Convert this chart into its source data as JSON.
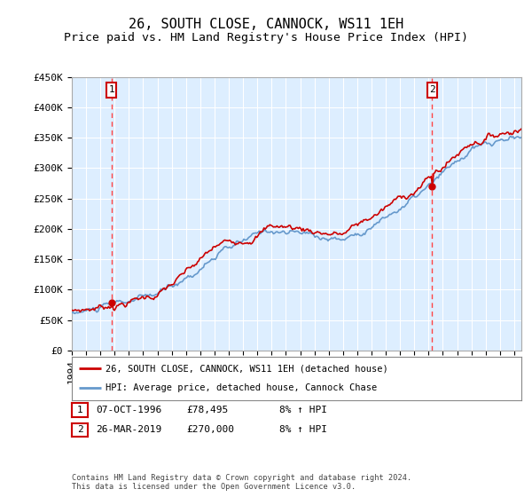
{
  "title": "26, SOUTH CLOSE, CANNOCK, WS11 1EH",
  "subtitle": "Price paid vs. HM Land Registry's House Price Index (HPI)",
  "ylabel_ticks": [
    0,
    50000,
    100000,
    150000,
    200000,
    250000,
    300000,
    350000,
    400000,
    450000
  ],
  "ylabel_labels": [
    "£0",
    "£50K",
    "£100K",
    "£150K",
    "£200K",
    "£250K",
    "£300K",
    "£350K",
    "£400K",
    "£450K"
  ],
  "ylim": [
    0,
    450000
  ],
  "xlim_start": 1994.0,
  "xlim_end": 2025.5,
  "plot_bg_color": "#ddeeff",
  "outer_bg_color": "#ffffff",
  "hatch_color": "#cccccc",
  "grid_color": "#ffffff",
  "sale1_x": 1996.77,
  "sale1_y": 78495,
  "sale1_label": "1",
  "sale2_x": 2019.23,
  "sale2_y": 270000,
  "sale2_label": "2",
  "sale_marker_color": "#cc0000",
  "vline_color": "#ff4444",
  "legend_line1": "26, SOUTH CLOSE, CANNOCK, WS11 1EH (detached house)",
  "legend_line2": "HPI: Average price, detached house, Cannock Chase",
  "ann1_date": "07-OCT-1996",
  "ann1_price": "£78,495",
  "ann1_note": "8% ↑ HPI",
  "ann2_date": "26-MAR-2019",
  "ann2_price": "£270,000",
  "ann2_note": "8% ↑ HPI",
  "footer": "Contains HM Land Registry data © Crown copyright and database right 2024.\nThis data is licensed under the Open Government Licence v3.0.",
  "red_line_color": "#cc0000",
  "blue_line_color": "#6699cc",
  "title_fontsize": 11,
  "subtitle_fontsize": 9.5,
  "tick_fontsize": 8
}
